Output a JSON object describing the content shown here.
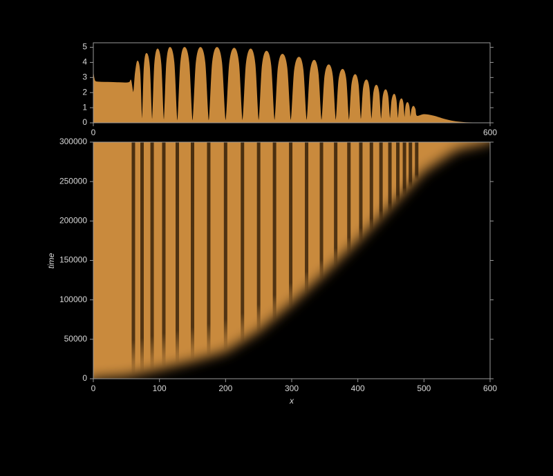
{
  "chart_data": [
    {
      "type": "area",
      "color": "#c98a3c",
      "xlim": [
        0,
        600
      ],
      "ylim": [
        0,
        5.3
      ],
      "xticks": [
        0,
        600
      ],
      "yticks": [
        0,
        1,
        2,
        3,
        4,
        5
      ],
      "x": [
        0,
        1,
        3,
        10,
        30,
        50,
        55,
        57,
        60.6,
        63.4,
        66.9,
        70.6,
        73.7,
        76.8,
        80.5,
        85.1,
        88.9,
        92.6,
        97.2,
        102.4,
        106.6,
        110.8,
        116,
        122.1,
        127,
        132,
        138,
        144.6,
        150,
        155.4,
        162,
        168.9,
        174.5,
        180.1,
        187,
        194.2,
        200,
        205.9,
        213,
        219.9,
        225.5,
        231.1,
        238,
        244.6,
        250,
        255.4,
        262,
        268.6,
        274,
        279.4,
        286,
        292.9,
        298.5,
        304.1,
        311,
        317.3,
        322.5,
        327.7,
        334,
        340,
        345,
        350,
        356,
        361.8,
        366.5,
        371.2,
        377,
        382.2,
        386.5,
        390.8,
        396,
        400.7,
        404.5,
        408.3,
        413,
        417.1,
        420.5,
        423.9,
        428,
        431.9,
        435,
        438.1,
        442,
        445.6,
        448.5,
        451.4,
        455,
        458,
        460.5,
        463,
        466,
        468.5,
        470.5,
        472.5,
        475,
        477.5,
        479.5,
        481.5,
        484,
        486.8,
        489,
        500,
        515,
        530,
        545,
        560,
        580,
        600
      ],
      "values": [
        3.3,
        3.0,
        2.75,
        2.7,
        2.68,
        2.65,
        2.7,
        2.8,
        2.0,
        3.3,
        4.1,
        3.3,
        0.15,
        3.7,
        4.6,
        3.7,
        0.15,
        3.9,
        4.9,
        3.9,
        0.15,
        4.0,
        5.0,
        4.0,
        0.15,
        4.0,
        5.0,
        4.0,
        0.15,
        4.0,
        5.0,
        4.0,
        0.15,
        4.0,
        5.0,
        4.0,
        0.15,
        3.95,
        4.95,
        3.95,
        0.15,
        3.9,
        4.9,
        3.9,
        0.15,
        3.8,
        4.75,
        3.8,
        0.15,
        3.65,
        4.55,
        3.65,
        0.15,
        3.5,
        4.35,
        3.5,
        0.15,
        3.3,
        4.15,
        3.3,
        0.15,
        3.1,
        3.85,
        3.1,
        0.15,
        2.85,
        3.55,
        2.85,
        0.15,
        2.55,
        3.2,
        2.55,
        0.2,
        2.3,
        2.85,
        2.3,
        0.2,
        2.0,
        2.5,
        2.0,
        0.2,
        1.75,
        2.2,
        1.75,
        0.25,
        1.5,
        1.9,
        1.5,
        0.25,
        1.3,
        1.6,
        1.3,
        0.3,
        1.1,
        1.35,
        1.1,
        0.35,
        0.9,
        1.1,
        0.9,
        0.45,
        0.55,
        0.45,
        0.25,
        0.1,
        0.03,
        0,
        0
      ]
    },
    {
      "type": "heatmap",
      "color": "#c98a3c",
      "xlabel": "x",
      "ylabel": "time",
      "xlim": [
        0,
        600
      ],
      "ylim": [
        0,
        300000
      ],
      "xticks": [
        0,
        100,
        200,
        300,
        400,
        500,
        600
      ],
      "yticks": [
        0,
        50000,
        100000,
        150000,
        200000,
        250000,
        300000
      ],
      "front": {
        "x": [
          0,
          50,
          100,
          150,
          200,
          250,
          300,
          350,
          400,
          450,
          500,
          550,
          600
        ],
        "time": [
          0,
          3000,
          12000,
          22000,
          34000,
          60000,
          95000,
          133000,
          174000,
          218000,
          262000,
          290000,
          300000
        ]
      },
      "stripes": {
        "x": [
          60.6,
          73.7,
          88.9,
          106.6,
          127,
          150,
          174.5,
          200,
          225.5,
          250,
          274,
          298.5,
          322.5,
          345,
          366.5,
          386.5,
          404.5,
          420.5,
          435,
          448.5,
          460.5,
          470.5,
          479.5,
          489
        ],
        "start": [
          5000,
          8000,
          11000,
          15000,
          19000,
          24000,
          29000,
          36000,
          45000,
          58000,
          72000,
          90000,
          107000,
          125000,
          142000,
          158000,
          172000,
          186000,
          198000,
          210000,
          222000,
          232000,
          242000,
          252000
        ]
      }
    }
  ]
}
